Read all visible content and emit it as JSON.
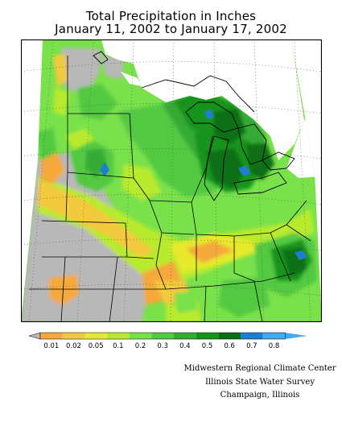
{
  "title": {
    "line1": "Total Precipitation in Inches",
    "line2": "January 11, 2002 to January 17, 2002"
  },
  "legend": {
    "labels": [
      "0.01",
      "0.02",
      "0.05",
      "0.1",
      "0.2",
      "0.3",
      "0.4",
      "0.5",
      "0.6",
      "0.7",
      "0.8"
    ],
    "colors": [
      "#f5a93a",
      "#f3c93c",
      "#e6ea2c",
      "#b8ea2e",
      "#79e14a",
      "#52c943",
      "#35ab35",
      "#16941b",
      "#0c6f12",
      "#1e7fd0",
      "#43aaf0"
    ],
    "below_color": "#b8b8b8"
  },
  "credits": {
    "line1": "Midwestern Regional Climate Center",
    "line2": "Illinois State Water Survey",
    "line3": "Champaign, Illinois"
  }
}
